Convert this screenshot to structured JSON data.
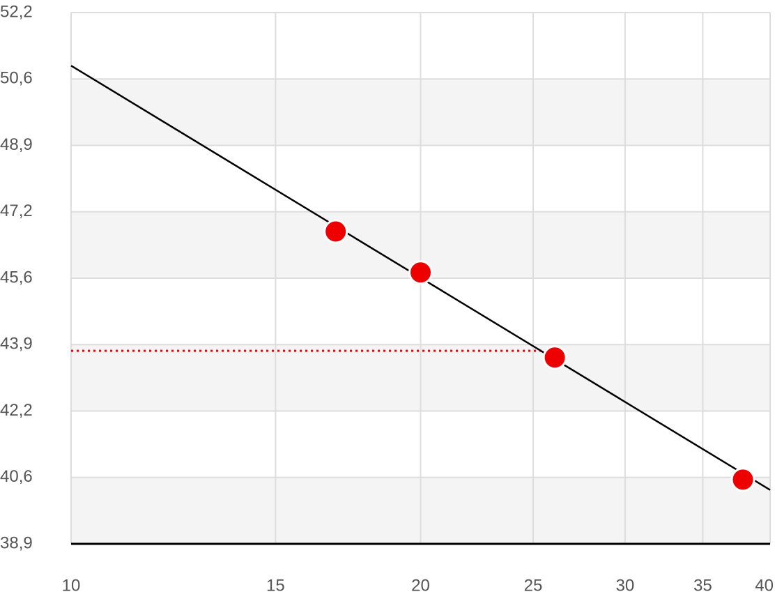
{
  "chart_data": {
    "type": "scatter",
    "x": [
      16.9,
      20,
      26.1,
      37.9
    ],
    "series": [
      {
        "color": "#ee0000",
        "values": [
          46.74,
          45.71,
          43.57,
          40.5
        ]
      }
    ],
    "trend": {
      "color": "#000000",
      "x": [
        10,
        40
      ],
      "values": [
        50.91,
        40.24
      ]
    },
    "hline": {
      "color": "#ee0000",
      "value": 43.74,
      "x": [
        10,
        26.1
      ]
    },
    "xscale": "log",
    "xlim": [
      10,
      40
    ],
    "xticks": [
      10,
      15,
      20,
      25,
      30,
      35,
      40
    ],
    "ylim": [
      38.885,
      52.245
    ],
    "yticks": [
      {
        "value": 38.885,
        "label": "38,9"
      },
      {
        "value": 40.555,
        "label": "40,6"
      },
      {
        "value": 42.225,
        "label": "42,2"
      },
      {
        "value": 43.895,
        "label": "43,9"
      },
      {
        "value": 45.565,
        "label": "45,6"
      },
      {
        "value": 47.235,
        "label": "47,2"
      },
      {
        "value": 48.905,
        "label": "48,9"
      },
      {
        "value": 50.575,
        "label": "50,6"
      },
      {
        "value": 52.245,
        "label": "52,2"
      }
    ],
    "grid": true,
    "banded": true
  }
}
